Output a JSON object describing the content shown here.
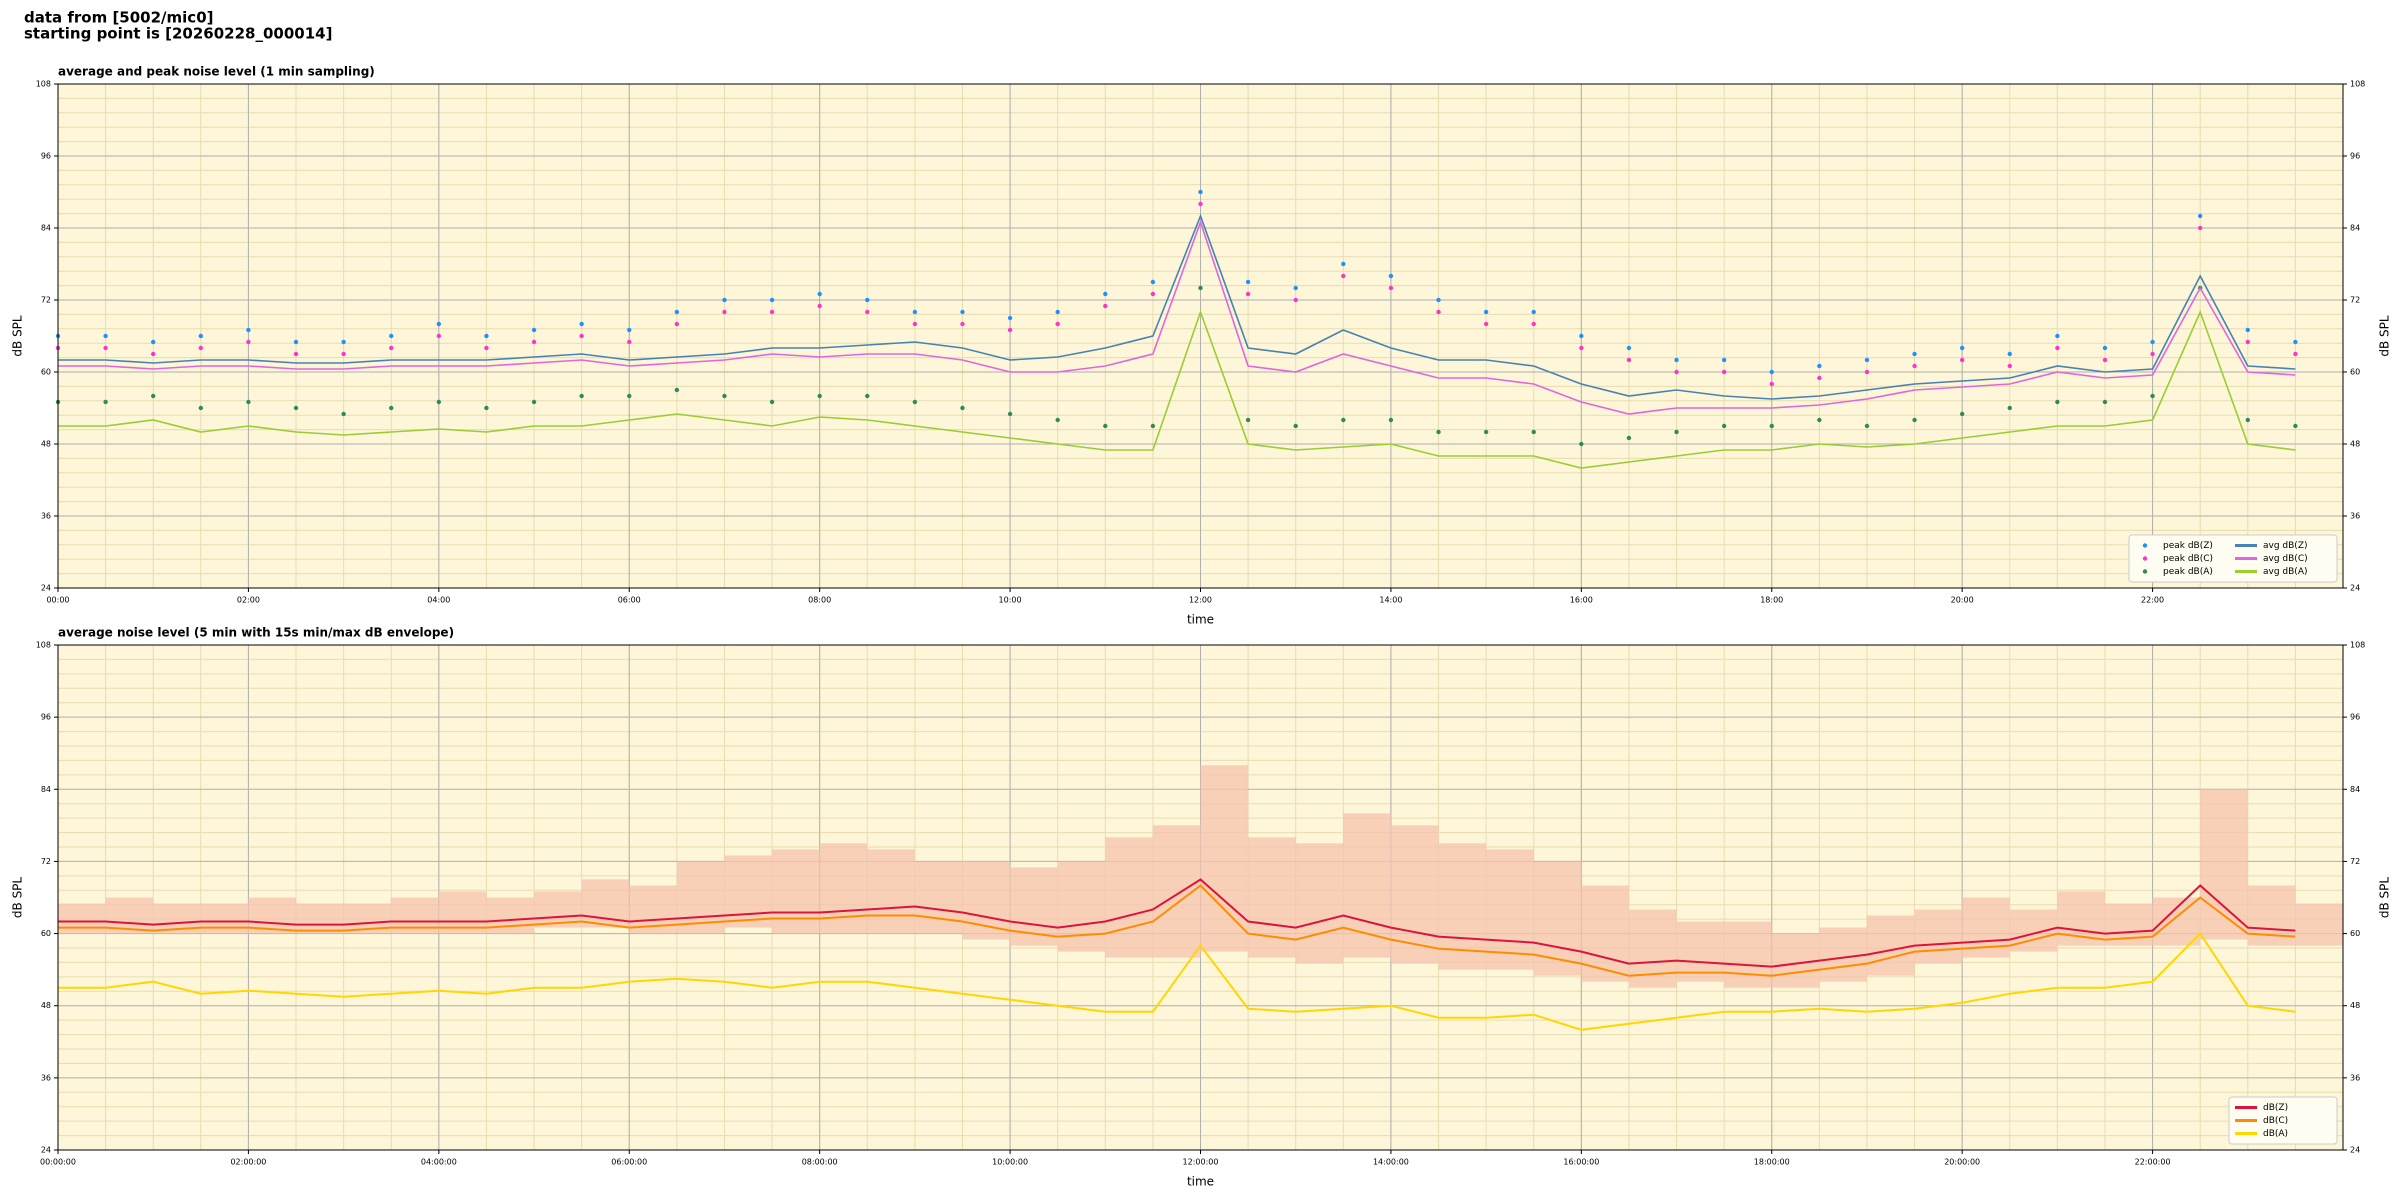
{
  "header": {
    "lines": [
      "data from [5002/mic0]",
      "starting point is [20260228_000014]"
    ]
  },
  "chart_data": [
    {
      "type": "line",
      "title": "average and peak noise level (1 min sampling)",
      "xlabel": "time",
      "ylabel": "dB SPL",
      "grid": true,
      "legend": "lower right",
      "background": "#fdf6d8",
      "categories": [
        "00:00",
        "00:30",
        "01:00",
        "01:30",
        "02:00",
        "02:30",
        "03:00",
        "03:30",
        "04:00",
        "04:30",
        "05:00",
        "05:30",
        "06:00",
        "06:30",
        "07:00",
        "07:30",
        "08:00",
        "08:30",
        "09:00",
        "09:30",
        "10:00",
        "10:30",
        "11:00",
        "11:30",
        "12:00",
        "12:30",
        "13:00",
        "13:30",
        "14:00",
        "14:30",
        "15:00",
        "15:30",
        "16:00",
        "16:30",
        "17:00",
        "17:30",
        "18:00",
        "18:30",
        "19:00",
        "19:30",
        "20:00",
        "20:30",
        "21:00",
        "21:30",
        "22:00",
        "22:30",
        "23:00",
        "23:30"
      ],
      "xticks": [
        "00:00",
        "02:00",
        "04:00",
        "06:00",
        "08:00",
        "10:00",
        "12:00",
        "14:00",
        "16:00",
        "18:00",
        "20:00",
        "22:00"
      ],
      "ylim": [
        24,
        108
      ],
      "yticks": [
        24,
        36,
        48,
        60,
        72,
        84,
        96,
        108
      ],
      "series": [
        {
          "name": "peak dB(Z)",
          "type": "scatter",
          "color": "#1e90ff",
          "values": [
            66,
            66,
            65,
            66,
            67,
            65,
            65,
            66,
            68,
            66,
            67,
            68,
            67,
            70,
            72,
            72,
            73,
            72,
            70,
            70,
            69,
            70,
            73,
            75,
            90,
            75,
            74,
            78,
            76,
            72,
            70,
            70,
            66,
            64,
            62,
            62,
            60,
            61,
            62,
            63,
            64,
            63,
            66,
            64,
            65,
            86,
            67,
            65
          ]
        },
        {
          "name": "peak dB(C)",
          "type": "scatter",
          "color": "#ff33cc",
          "values": [
            64,
            64,
            63,
            64,
            65,
            63,
            63,
            64,
            66,
            64,
            65,
            66,
            65,
            68,
            70,
            70,
            71,
            70,
            68,
            68,
            67,
            68,
            71,
            73,
            88,
            73,
            72,
            76,
            74,
            70,
            68,
            68,
            64,
            62,
            60,
            60,
            58,
            59,
            60,
            61,
            62,
            61,
            64,
            62,
            63,
            84,
            65,
            63
          ]
        },
        {
          "name": "peak dB(A)",
          "type": "scatter",
          "color": "#2e8b57",
          "values": [
            55,
            55,
            56,
            54,
            55,
            54,
            53,
            54,
            55,
            54,
            55,
            56,
            56,
            57,
            56,
            55,
            56,
            56,
            55,
            54,
            53,
            52,
            51,
            51,
            74,
            52,
            51,
            52,
            52,
            50,
            50,
            50,
            48,
            49,
            50,
            51,
            51,
            52,
            51,
            52,
            53,
            54,
            55,
            55,
            56,
            74,
            52,
            51
          ]
        },
        {
          "name": "avg dB(Z)",
          "type": "line",
          "color": "#4682b4",
          "values": [
            62,
            62,
            61.5,
            62,
            62,
            61.5,
            61.5,
            62,
            62,
            62,
            62.5,
            63,
            62,
            62.5,
            63,
            64,
            64,
            64.5,
            65,
            64,
            62,
            62.5,
            64,
            66,
            86,
            64,
            63,
            67,
            64,
            62,
            62,
            61,
            58,
            56,
            57,
            56,
            55.5,
            56,
            57,
            58,
            58.5,
            59,
            61,
            60,
            60.5,
            76,
            61,
            60.5
          ]
        },
        {
          "name": "avg dB(C)",
          "type": "line",
          "color": "#e066e0",
          "values": [
            61,
            61,
            60.5,
            61,
            61,
            60.5,
            60.5,
            61,
            61,
            61,
            61.5,
            62,
            61,
            61.5,
            62,
            63,
            62.5,
            63,
            63,
            62,
            60,
            60,
            61,
            63,
            85,
            61,
            60,
            63,
            61,
            59,
            59,
            58,
            55,
            53,
            54,
            54,
            54,
            54.5,
            55.5,
            57,
            57.5,
            58,
            60,
            59,
            59.5,
            74,
            60,
            59.5
          ]
        },
        {
          "name": "avg dB(A)",
          "type": "line",
          "color": "#9acd32",
          "values": [
            51,
            51,
            52,
            50,
            51,
            50,
            49.5,
            50,
            50.5,
            50,
            51,
            51,
            52,
            53,
            52,
            51,
            52.5,
            52,
            51,
            50,
            49,
            48,
            47,
            47,
            70,
            48,
            47,
            47.5,
            48,
            46,
            46,
            46,
            44,
            45,
            46,
            47,
            47,
            48,
            47.5,
            48,
            49,
            50,
            51,
            51,
            52,
            70,
            48,
            47
          ]
        }
      ]
    },
    {
      "type": "line",
      "title": "average noise level (5 min with 15s min/max dB envelope)",
      "xlabel": "time",
      "ylabel": "dB SPL",
      "grid": true,
      "legend": "lower right",
      "background": "#fdf6d8",
      "categories": [
        "00:00:00",
        "00:30:00",
        "01:00:00",
        "01:30:00",
        "02:00:00",
        "02:30:00",
        "03:00:00",
        "03:30:00",
        "04:00:00",
        "04:30:00",
        "05:00:00",
        "05:30:00",
        "06:00:00",
        "06:30:00",
        "07:00:00",
        "07:30:00",
        "08:00:00",
        "08:30:00",
        "09:00:00",
        "09:30:00",
        "10:00:00",
        "10:30:00",
        "11:00:00",
        "11:30:00",
        "12:00:00",
        "12:30:00",
        "13:00:00",
        "13:30:00",
        "14:00:00",
        "14:30:00",
        "15:00:00",
        "15:30:00",
        "16:00:00",
        "16:30:00",
        "17:00:00",
        "17:30:00",
        "18:00:00",
        "18:30:00",
        "19:00:00",
        "19:30:00",
        "20:00:00",
        "20:30:00",
        "21:00:00",
        "21:30:00",
        "22:00:00",
        "22:30:00",
        "23:00:00",
        "23:30:00"
      ],
      "xticks": [
        "00:00:00",
        "02:00:00",
        "04:00:00",
        "06:00:00",
        "08:00:00",
        "10:00:00",
        "12:00:00",
        "14:00:00",
        "16:00:00",
        "18:00:00",
        "20:00:00",
        "22:00:00"
      ],
      "ylim": [
        24,
        108
      ],
      "yticks": [
        24,
        36,
        48,
        60,
        72,
        84,
        96,
        108
      ],
      "envelope": {
        "color": "#f6c3ad",
        "min": [
          60,
          60,
          60,
          60,
          60,
          60,
          60,
          60,
          60,
          60,
          61,
          61,
          60,
          60,
          61,
          60,
          60,
          60,
          60,
          59,
          58,
          57,
          56,
          56,
          57,
          56,
          55,
          56,
          55,
          54,
          54,
          53,
          52,
          51,
          52,
          51,
          51,
          52,
          53,
          55,
          56,
          57,
          58,
          58,
          58,
          59,
          58,
          58
        ],
        "max": [
          65,
          66,
          65,
          65,
          66,
          65,
          65,
          66,
          67,
          66,
          67,
          69,
          68,
          72,
          73,
          74,
          75,
          74,
          72,
          72,
          71,
          72,
          76,
          78,
          88,
          76,
          75,
          80,
          78,
          75,
          74,
          72,
          68,
          64,
          62,
          62,
          60,
          61,
          63,
          64,
          66,
          64,
          67,
          65,
          66,
          84,
          68,
          65
        ]
      },
      "series": [
        {
          "name": "dB(Z)",
          "type": "line",
          "color": "#dc143c",
          "values": [
            62,
            62,
            61.5,
            62,
            62,
            61.5,
            61.5,
            62,
            62,
            62,
            62.5,
            63,
            62,
            62.5,
            63,
            63.5,
            63.5,
            64,
            64.5,
            63.5,
            62,
            61,
            62,
            64,
            69,
            62,
            61,
            63,
            61,
            59.5,
            59,
            58.5,
            57,
            55,
            55.5,
            55,
            54.5,
            55.5,
            56.5,
            58,
            58.5,
            59,
            61,
            60,
            60.5,
            68,
            61,
            60.5
          ]
        },
        {
          "name": "dB(C)",
          "type": "line",
          "color": "#ff8c00",
          "values": [
            61,
            61,
            60.5,
            61,
            61,
            60.5,
            60.5,
            61,
            61,
            61,
            61.5,
            62,
            61,
            61.5,
            62,
            62.5,
            62.5,
            63,
            63,
            62,
            60.5,
            59.5,
            60,
            62,
            68,
            60,
            59,
            61,
            59,
            57.5,
            57,
            56.5,
            55,
            53,
            53.5,
            53.5,
            53,
            54,
            55,
            57,
            57.5,
            58,
            60,
            59,
            59.5,
            66,
            60,
            59.5
          ]
        },
        {
          "name": "dB(A)",
          "type": "line",
          "color": "#ffd700",
          "values": [
            51,
            51,
            52,
            50,
            50.5,
            50,
            49.5,
            50,
            50.5,
            50,
            51,
            51,
            52,
            52.5,
            52,
            51,
            52,
            52,
            51,
            50,
            49,
            48,
            47,
            47,
            58,
            47.5,
            47,
            47.5,
            48,
            46,
            46,
            46.5,
            44,
            45,
            46,
            47,
            47,
            47.5,
            47,
            47.5,
            48.5,
            50,
            51,
            51,
            52,
            60,
            48,
            47
          ]
        }
      ]
    }
  ]
}
